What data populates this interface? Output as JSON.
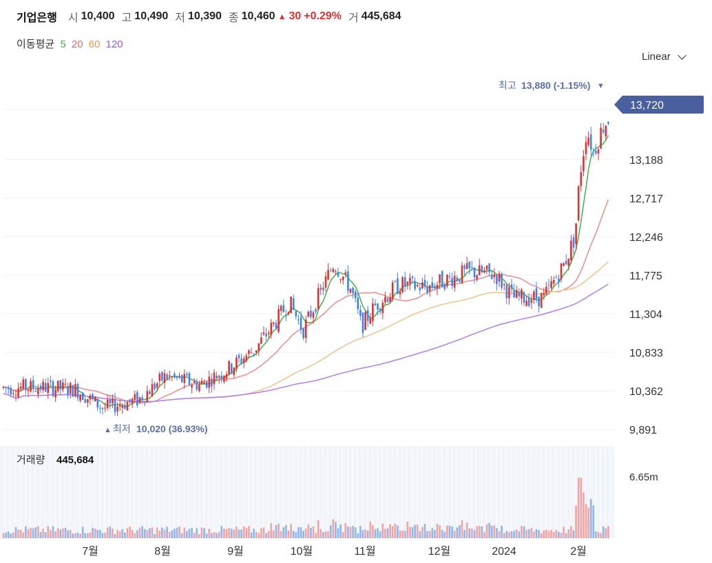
{
  "header": {
    "name": "기업은행",
    "open_label": "시",
    "open": "10,400",
    "high_label": "고",
    "high": "10,490",
    "low_label": "저",
    "low": "10,390",
    "close_label": "종",
    "close": "10,460",
    "change_arrow": "▲",
    "change": "30",
    "change_pct": "+0.29%",
    "volume_label": "거",
    "volume": "445,684"
  },
  "ma_legend": {
    "label": "이동평균",
    "periods": [
      "5",
      "20",
      "60",
      "120"
    ]
  },
  "scale_button": {
    "label": "Linear"
  },
  "price_panel": {
    "max_annotation": {
      "arrow": "▼",
      "label": "최고",
      "value": "13,880 (-1.15%)"
    },
    "min_annotation": {
      "arrow": "▲",
      "label": "최저",
      "value": "10,020 (36.93%)"
    },
    "current_price_tag": "13,720"
  },
  "volume_panel": {
    "label": "거래량",
    "value": "445,684",
    "axis_label": "6.65m"
  },
  "colors": {
    "up": "#e03131",
    "down": "#3b82f6",
    "ma5": "#41b14a",
    "ma20": "#f08a8a",
    "ma60": "#f7c08a",
    "ma120": "#b57bf0",
    "tag": "#4a5f9e",
    "annotation": "#5a6ea8"
  },
  "chart_data": {
    "type": "candlestick",
    "y_axis": {
      "ticks": [
        "13,188",
        "12,717",
        "12,246",
        "11,775",
        "11,304",
        "10,833",
        "10,362",
        "9,891"
      ],
      "range": [
        9891,
        13800
      ]
    },
    "x_axis": {
      "ticks": [
        "7월",
        "8월",
        "9월",
        "10월",
        "11월",
        "12월",
        "2024",
        "2월"
      ]
    },
    "moving_averages": [
      "5",
      "20",
      "60",
      "120"
    ],
    "high": 13880,
    "low": 10020,
    "last_close": 13720,
    "volume_axis_max": "6.65m"
  }
}
